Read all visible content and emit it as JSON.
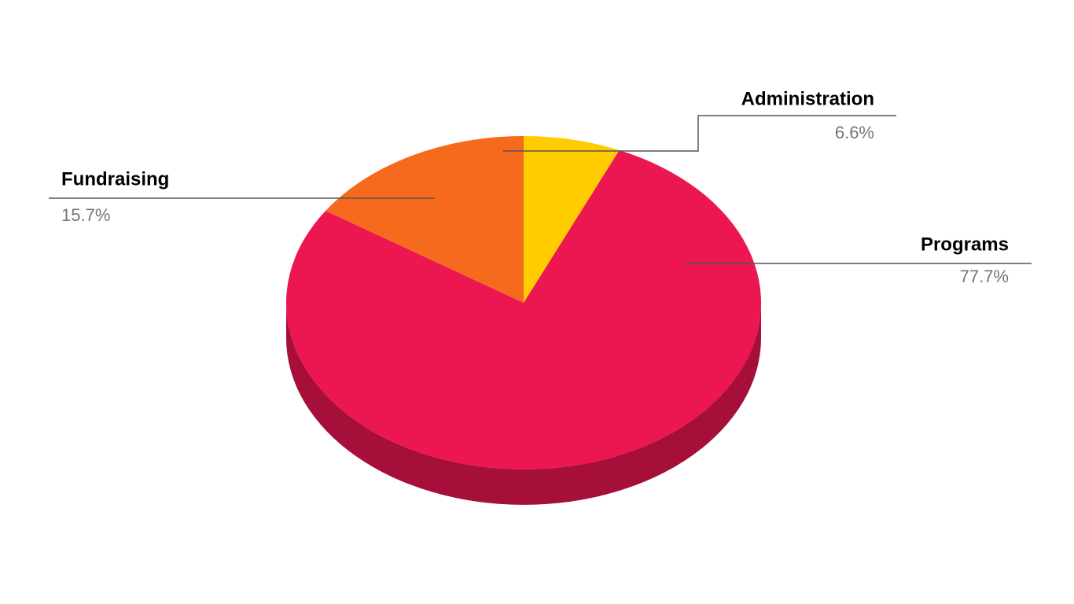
{
  "chart_data": {
    "type": "pie",
    "categories": [
      "Administration",
      "Programs",
      "Fundraising"
    ],
    "values": [
      6.6,
      77.7,
      15.7
    ],
    "value_labels": [
      "6.6%",
      "77.7%",
      "15.7%"
    ],
    "colors": [
      "#ffcc00",
      "#ec1651",
      "#f56a1d"
    ]
  }
}
